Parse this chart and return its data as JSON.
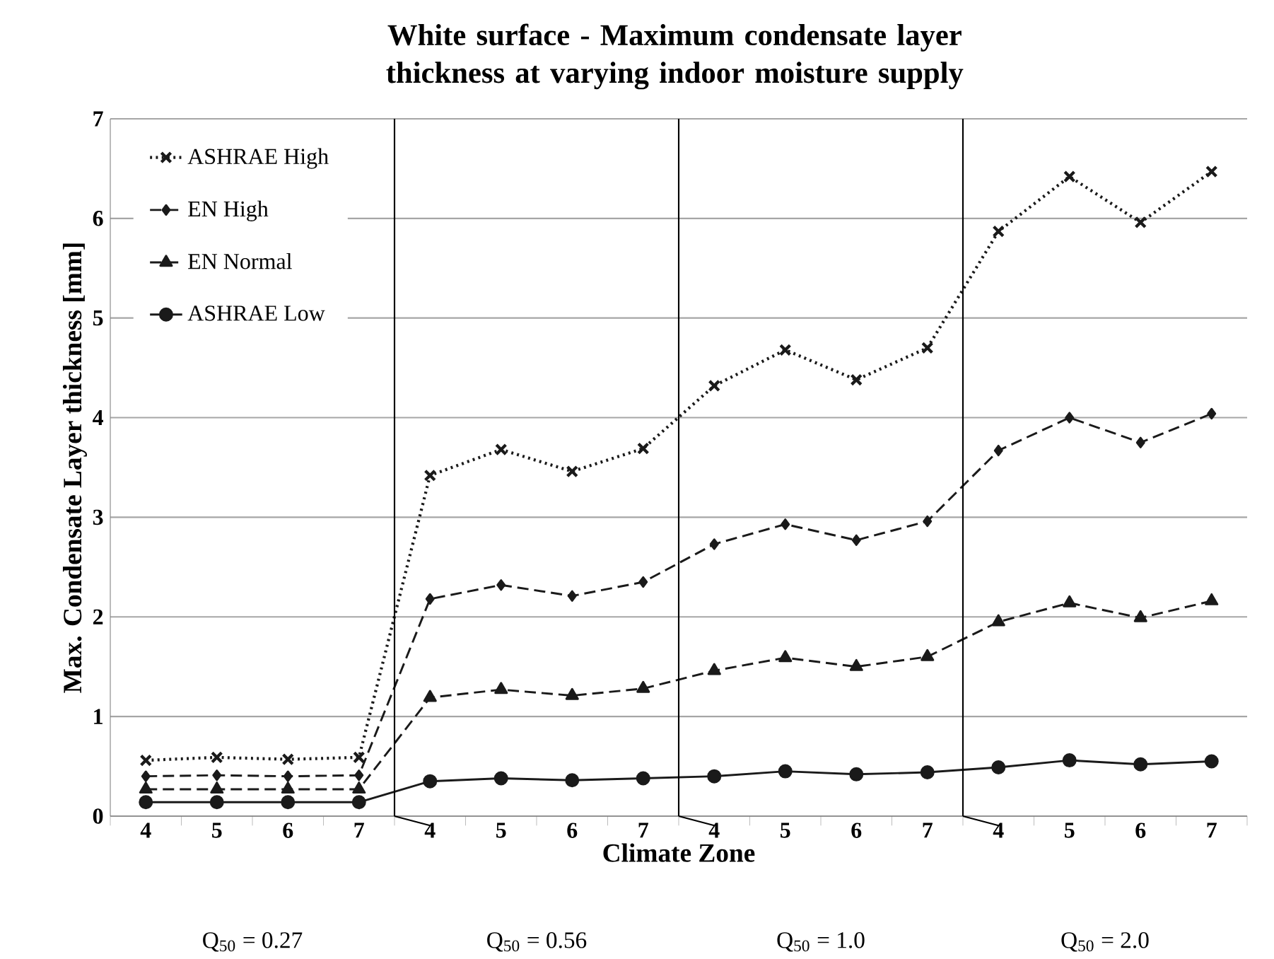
{
  "chart_data": {
    "type": "line",
    "title": "White surface - Maximum condensate layer thickness at varying indoor moisture supply",
    "xlabel": "Climate Zone",
    "ylabel": "Max. Condensate Layer thickness [mm]",
    "categories": [
      "4",
      "5",
      "6",
      "7",
      "4",
      "5",
      "6",
      "7",
      "4",
      "5",
      "6",
      "7",
      "4",
      "5",
      "6",
      "7"
    ],
    "series": [
      {
        "name": "ASHRAE High",
        "color": "#1a1a1a",
        "marker": "cross",
        "line_style": "dotted",
        "values": [
          0.56,
          0.59,
          0.57,
          0.59,
          3.42,
          3.68,
          3.46,
          3.69,
          4.32,
          4.68,
          4.38,
          4.7,
          5.87,
          6.42,
          5.96,
          6.47
        ]
      },
      {
        "name": "EN High",
        "color": "#1a1a1a",
        "marker": "diamond",
        "line_style": "dashed",
        "values": [
          0.4,
          0.41,
          0.4,
          0.41,
          2.18,
          2.32,
          2.21,
          2.35,
          2.73,
          2.93,
          2.77,
          2.96,
          3.67,
          4.0,
          3.75,
          4.04
        ]
      },
      {
        "name": "EN Normal",
        "color": "#1a1a1a",
        "marker": "triangle",
        "line_style": "dashed",
        "values": [
          0.27,
          0.27,
          0.27,
          0.27,
          1.19,
          1.27,
          1.21,
          1.28,
          1.46,
          1.59,
          1.5,
          1.6,
          1.95,
          2.14,
          1.99,
          2.16
        ]
      },
      {
        "name": "ASHRAE Low",
        "color": "#1a1a1a",
        "marker": "circle",
        "line_style": "solid",
        "values": [
          0.14,
          0.14,
          0.14,
          0.14,
          0.35,
          0.38,
          0.36,
          0.38,
          0.4,
          0.45,
          0.42,
          0.44,
          0.49,
          0.56,
          0.52,
          0.55
        ]
      }
    ],
    "ylim": [
      0,
      7
    ],
    "yticks": [
      0,
      1,
      2,
      3,
      4,
      5,
      6,
      7
    ],
    "grid": "y",
    "legend": "top left",
    "annotations": [
      "Q$_{50}$ = 0.27",
      "Q$_{50}$ = 0.56",
      "Q$_{50}$ = 1.0",
      "Q$_{50}$ = 2.0"
    ]
  }
}
